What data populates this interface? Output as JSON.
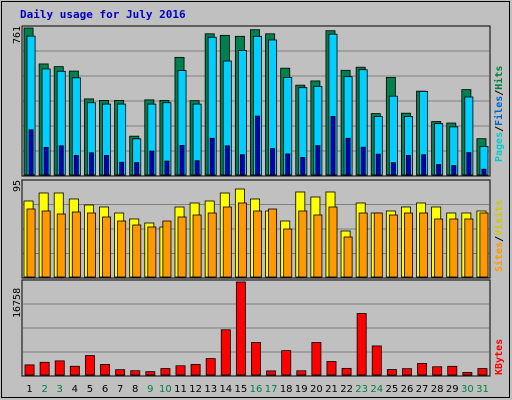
{
  "title": "Daily usage for July 2016",
  "colors": {
    "hits": "#00cccc",
    "files": "#0066cc",
    "pages": "#00cccc",
    "visits": "#ffff00",
    "sites": "#ff9900",
    "kbytes": "#ff0000",
    "title": "#0000c0",
    "background": "#c0c0c0",
    "weekend_label": "#008040",
    "weekday_label": "#000000",
    "hits_bar": "#00cfff",
    "hits_back": "#007f4f",
    "files_bar": "#00cfff",
    "pages_bar": "#0000c0"
  },
  "panels": {
    "hits": {
      "ymax_label": "761",
      "legend": [
        "Pages",
        "/",
        "Files",
        "/",
        "Hits"
      ]
    },
    "visits": {
      "ymax_label": "95",
      "legend": [
        "Sites",
        "/",
        "Visits"
      ]
    },
    "kbytes": {
      "ymax_label": "16758",
      "legend": [
        "KBytes"
      ]
    }
  },
  "chart_data": {
    "type": "bar",
    "categories": [
      "1",
      "2",
      "3",
      "4",
      "5",
      "6",
      "7",
      "8",
      "9",
      "10",
      "11",
      "12",
      "13",
      "14",
      "15",
      "16",
      "17",
      "18",
      "19",
      "20",
      "21",
      "22",
      "23",
      "24",
      "25",
      "26",
      "27",
      "28",
      "29",
      "30",
      "31"
    ],
    "weekend_days": [
      "2",
      "3",
      "9",
      "10",
      "16",
      "17",
      "23",
      "24",
      "30",
      "31"
    ],
    "series": [
      {
        "name": "Hits",
        "panel": "hits",
        "values": [
          761,
          575,
          561,
          538,
          394,
          386,
          386,
          201,
          389,
          386,
          609,
          385,
          731,
          723,
          718,
          752,
          731,
          553,
          465,
          487,
          747,
          542,
          558,
          318,
          505,
          320,
          434,
          277,
          269,
          442,
          188
        ]
      },
      {
        "name": "Files",
        "panel": "hits",
        "values": [
          719,
          549,
          537,
          503,
          374,
          367,
          367,
          187,
          367,
          374,
          541,
          367,
          713,
          590,
          645,
          718,
          699,
          505,
          452,
          459,
          729,
          509,
          545,
          303,
          408,
          303,
          433,
          266,
          249,
          404,
          148
        ]
      },
      {
        "name": "Pages",
        "panel": "hits",
        "values": [
          234,
          143,
          151,
          101,
          115,
          101,
          66,
          64,
          124,
          72,
          153,
          74,
          190,
          151,
          105,
          305,
          137,
          109,
          91,
          152,
          303,
          190,
          144,
          108,
          64,
          101,
          105,
          54,
          49,
          116,
          30
        ]
      },
      {
        "name": "Visits",
        "panel": "visits",
        "values": [
          76,
          84,
          84,
          78,
          72,
          70,
          64,
          58,
          54,
          50,
          70,
          74,
          76,
          84,
          88,
          78,
          66,
          56,
          85,
          80,
          85,
          46,
          74,
          64,
          66,
          70,
          74,
          70,
          64,
          64,
          66
        ]
      },
      {
        "name": "Sites",
        "panel": "visits",
        "values": [
          68,
          66,
          63,
          65,
          64,
          60,
          56,
          52,
          50,
          56,
          60,
          62,
          64,
          70,
          74,
          66,
          68,
          48,
          66,
          62,
          70,
          40,
          64,
          64,
          62,
          64,
          64,
          58,
          58,
          58,
          64
        ]
      },
      {
        "name": "KBytes",
        "panel": "kbytes",
        "values": [
          1825,
          2288,
          2547,
          1571,
          3498,
          1899,
          958,
          771,
          607,
          1161,
          1665,
          1899,
          2956,
          8148,
          16758,
          5852,
          734,
          4391,
          757,
          5852,
          2429,
          1195,
          11080,
          5238,
          984,
          1140,
          2082,
          1489,
          1564,
          464,
          1155
        ]
      }
    ],
    "ylim": {
      "hits": [
        0,
        761
      ],
      "visits": [
        0,
        95
      ],
      "kbytes": [
        0,
        16758
      ]
    }
  }
}
